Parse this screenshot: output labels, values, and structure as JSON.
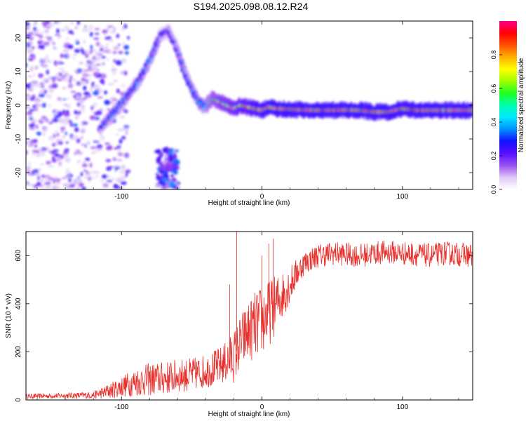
{
  "title": "S194.2025.098.08.12.R24",
  "colors": {
    "snr_line": "#e8302c",
    "axis": "#000000"
  },
  "chart_data": [
    {
      "type": "heatmap",
      "xlabel": "Height of straight line (km)",
      "ylabel": "Frequency (Hz)",
      "xlim": [
        -168,
        150
      ],
      "ylim": [
        -25,
        25
      ],
      "xticks": [
        -100,
        0,
        100
      ],
      "yticks": [
        -20,
        -10,
        0,
        10,
        20
      ],
      "colorbar": {
        "label": "Normalized spectral amplitude",
        "range": [
          0,
          1
        ],
        "ticks": [
          "0.0",
          "0.2",
          "0.4",
          "0.6",
          "0.8"
        ],
        "colormap": [
          "#ffffff",
          "#e0c8f8",
          "#9a4ff0",
          "#5a10ff",
          "#1010ff",
          "#0090ff",
          "#00e8ff",
          "#00ffb0",
          "#20ff20",
          "#a0ff00",
          "#ffff00",
          "#ffb000",
          "#ff5000",
          "#ff0000",
          "#ff0090"
        ]
      },
      "ridge": {
        "x": [
          -115,
          -105,
          -95,
          -85,
          -78,
          -72,
          -66,
          -60,
          -55,
          -50,
          -45,
          -40,
          -35,
          -30,
          -25,
          -20,
          -15,
          -10,
          -5,
          0,
          5,
          10,
          20,
          30,
          40,
          50,
          60,
          70,
          80,
          90,
          100,
          110,
          120,
          130,
          140,
          150
        ],
        "y": [
          -7,
          -2,
          3,
          9,
          15,
          21,
          22,
          16,
          10,
          5,
          1,
          -0.5,
          2,
          1,
          0,
          -1,
          0,
          -0.5,
          -1,
          -1.5,
          -0.5,
          -1,
          -1.2,
          -1.4,
          -1.5,
          -1.5,
          -1.4,
          -1.5,
          -2,
          -2,
          -1,
          -1.5,
          -1.5,
          -1.5,
          -1.5,
          -1.5
        ],
        "amplitude": [
          0.3,
          0.35,
          0.35,
          0.35,
          0.35,
          0.3,
          0.3,
          0.3,
          0.35,
          0.35,
          0.4,
          0.45,
          0.55,
          0.65,
          0.7,
          0.75,
          0.8,
          0.85,
          0.9,
          0.92,
          0.95,
          0.95,
          0.95,
          0.95,
          0.95,
          0.95,
          0.95,
          0.95,
          0.95,
          0.95,
          0.95,
          0.95,
          0.95,
          0.95,
          0.95,
          0.95
        ]
      },
      "lower_band": {
        "x": [
          -75,
          -60
        ],
        "y": [
          -25,
          -13
        ]
      },
      "noise_region": {
        "x": [
          -168,
          -95
        ],
        "y": [
          -25,
          25
        ]
      }
    },
    {
      "type": "line",
      "xlabel": "Height of straight line (km)",
      "ylabel": "SNR (10 * v/v)",
      "xlim": [
        -168,
        150
      ],
      "ylim": [
        0,
        700
      ],
      "xticks": [
        -100,
        0,
        100
      ],
      "yticks": [
        0,
        200,
        400,
        600
      ],
      "envelope": {
        "x": [
          -168,
          -140,
          -120,
          -110,
          -100,
          -90,
          -80,
          -70,
          -60,
          -50,
          -40,
          -30,
          -25,
          -20,
          -15,
          -10,
          -5,
          0,
          5,
          10,
          15,
          20,
          25,
          30,
          40,
          50,
          60,
          70,
          80,
          90,
          100,
          110,
          120,
          130,
          140,
          150
        ],
        "mean": [
          15,
          18,
          20,
          35,
          55,
          75,
          85,
          90,
          100,
          105,
          120,
          140,
          160,
          180,
          240,
          280,
          310,
          330,
          360,
          400,
          440,
          480,
          530,
          570,
          600,
          610,
          605,
          600,
          610,
          615,
          610,
          605,
          600,
          610,
          605,
          600
        ],
        "spread": [
          10,
          12,
          15,
          30,
          45,
          60,
          70,
          70,
          70,
          70,
          70,
          80,
          90,
          110,
          120,
          130,
          140,
          150,
          140,
          120,
          100,
          80,
          60,
          50,
          50,
          50,
          50,
          50,
          50,
          50,
          50,
          50,
          50,
          50,
          50,
          50
        ]
      },
      "spikes": [
        {
          "x": -18,
          "y": 700
        },
        {
          "x": -23,
          "y": 480
        },
        {
          "x": 8,
          "y": 670
        },
        {
          "x": 5,
          "y": 650
        },
        {
          "x": 0,
          "y": 600
        }
      ]
    }
  ]
}
